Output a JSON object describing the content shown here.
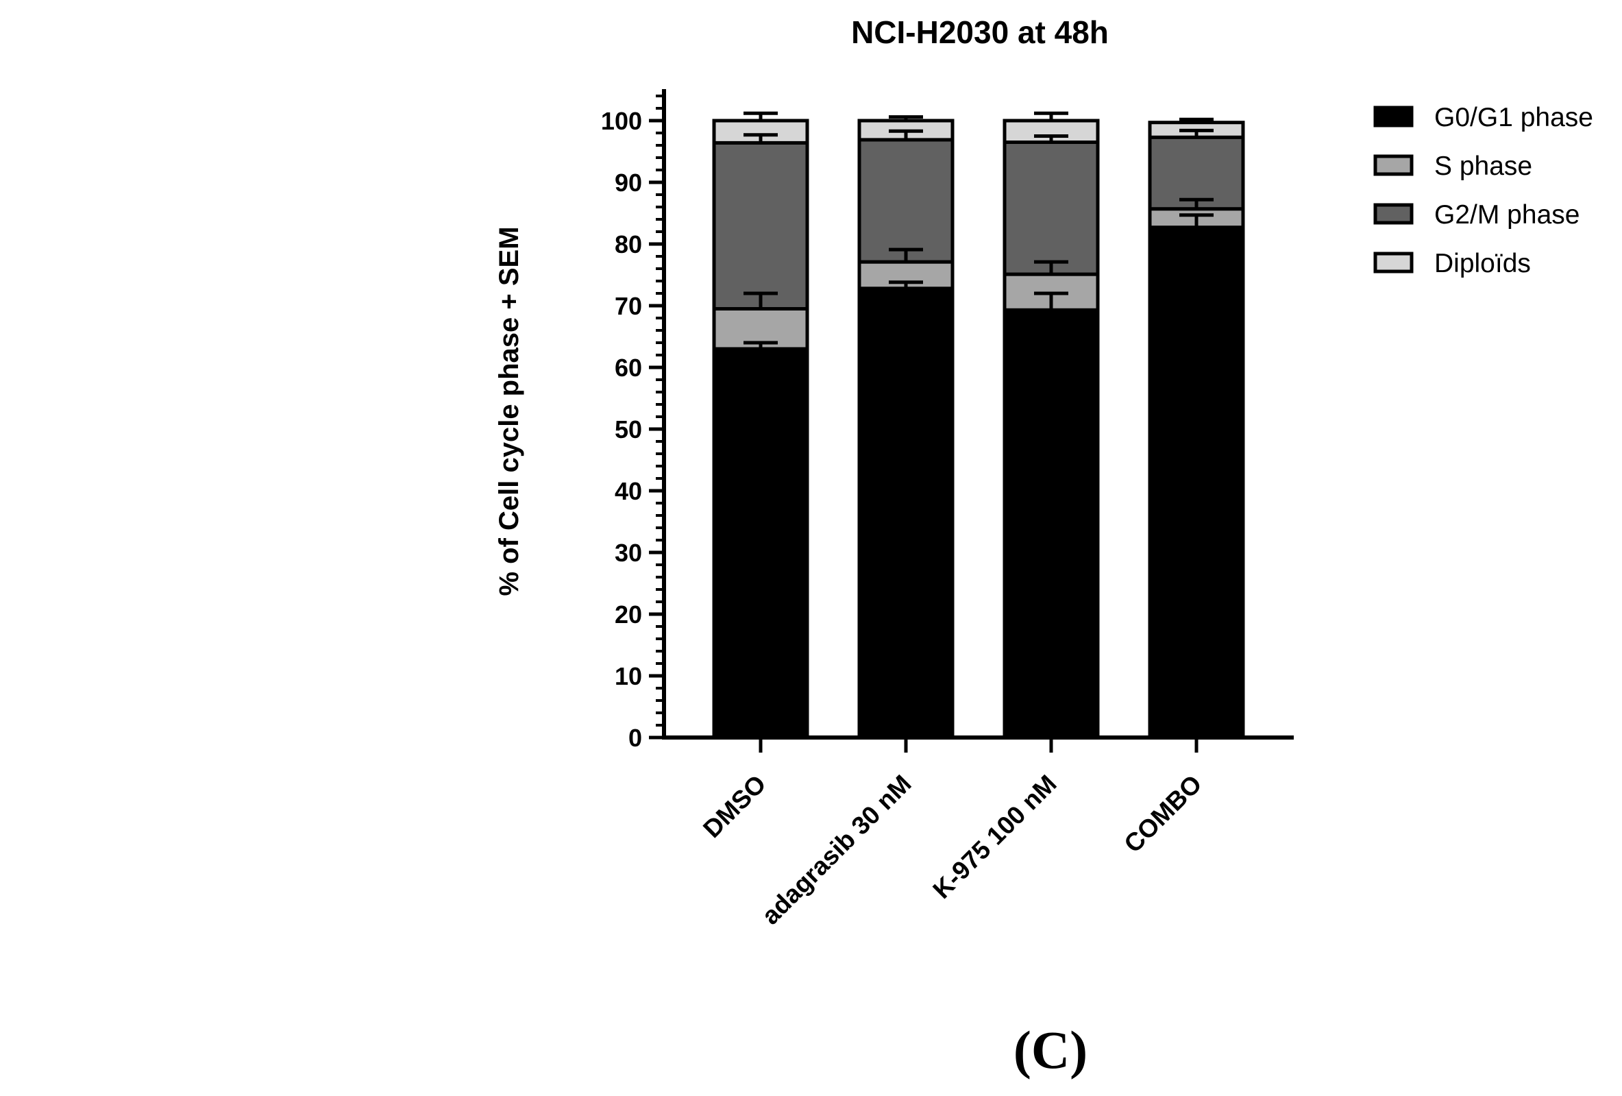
{
  "panel_label": "(C)",
  "chart_data": {
    "type": "bar",
    "stacked": true,
    "title": "NCI-H2030 at 48h",
    "xlabel": "",
    "ylabel": "% of Cell cycle phase + SEM",
    "ylim": [
      0,
      105
    ],
    "yticks": [
      "0",
      "10",
      "20",
      "30",
      "40",
      "50",
      "60",
      "70",
      "80",
      "90",
      "100"
    ],
    "categories": [
      "DMSO",
      "adagrasib 30 nM",
      "K-975 100 nM",
      "COMBO"
    ],
    "series": [
      {
        "name": "G0/G1 phase",
        "color": "#000000",
        "values": [
          63.0,
          72.8,
          69.3,
          82.7
        ],
        "errors": [
          1.0,
          1.0,
          2.7,
          2.0
        ]
      },
      {
        "name": "S phase",
        "color": "#a6a6a6",
        "values": [
          6.5,
          4.3,
          5.8,
          3.0
        ],
        "errors": [
          2.5,
          2.0,
          2.0,
          1.5
        ]
      },
      {
        "name": "G2/M phase",
        "color": "#616161",
        "values": [
          26.9,
          19.8,
          21.4,
          11.6
        ],
        "errors": [
          1.3,
          1.4,
          1.0,
          1.1
        ]
      },
      {
        "name": "Diploïds",
        "color": "#d6d6d6",
        "values": [
          3.6,
          3.1,
          3.5,
          2.4
        ],
        "errors": [
          1.2,
          0.6,
          1.2,
          0.5
        ]
      }
    ],
    "legend_position": "top-right",
    "grid": false
  }
}
